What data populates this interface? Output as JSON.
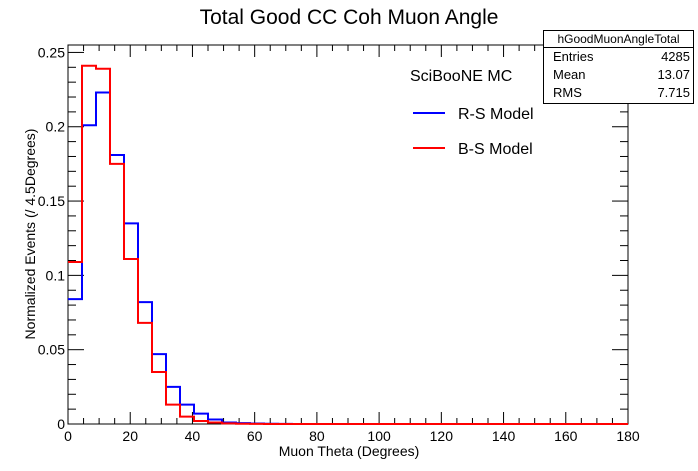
{
  "chart_data": {
    "type": "histogram",
    "title": "Total Good CC Coh Muon Angle",
    "xlabel": "Muon Theta (Degrees)",
    "ylabel": "Normalized Events (/ 4.5Degrees)",
    "xlim": [
      0,
      180
    ],
    "ylim": [
      0,
      0.255
    ],
    "x_ticks": [
      0,
      20,
      40,
      60,
      80,
      100,
      120,
      140,
      160,
      180
    ],
    "y_ticks": [
      0,
      0.05,
      0.1,
      0.15,
      0.2,
      0.25
    ],
    "x_tick_labels": [
      "0",
      "20",
      "40",
      "60",
      "80",
      "100",
      "120",
      "140",
      "160",
      "180"
    ],
    "y_tick_labels": [
      "0",
      "0.05",
      "0.1",
      "0.15",
      "0.2",
      "0.25"
    ],
    "bin_width": 4.5,
    "bin_edges_start": 0,
    "legend": {
      "header": "SciBooNE MC",
      "position": "top-right"
    },
    "series": [
      {
        "name": "R-S Model",
        "color": "#0000ff",
        "values": [
          0.084,
          0.201,
          0.223,
          0.181,
          0.135,
          0.082,
          0.047,
          0.025,
          0.013,
          0.007,
          0.003,
          0.001,
          0.0006,
          0.0003,
          0.0002,
          0.0001,
          0,
          0,
          0,
          0,
          0,
          0,
          0,
          0,
          0,
          0,
          0,
          0,
          0,
          0,
          0,
          0,
          0,
          0,
          0,
          0,
          0,
          0,
          0,
          0
        ]
      },
      {
        "name": "B-S Model",
        "color": "#ff0000",
        "values": [
          0.109,
          0.241,
          0.239,
          0.175,
          0.111,
          0.068,
          0.035,
          0.013,
          0.005,
          0.002,
          0.001,
          0.0004,
          0.0002,
          0.0001,
          0,
          0,
          0,
          0,
          0,
          0,
          0,
          0,
          0,
          0,
          0,
          0,
          0,
          0,
          0,
          0,
          0,
          0,
          0,
          0,
          0,
          0,
          0,
          0,
          0,
          0
        ]
      }
    ]
  },
  "stats_box": {
    "title": "hGoodMuonAngleTotal",
    "rows": [
      {
        "label": "Entries",
        "value": "4285"
      },
      {
        "label": "Mean",
        "value": "13.07"
      },
      {
        "label": "RMS",
        "value": "7.715"
      }
    ]
  }
}
